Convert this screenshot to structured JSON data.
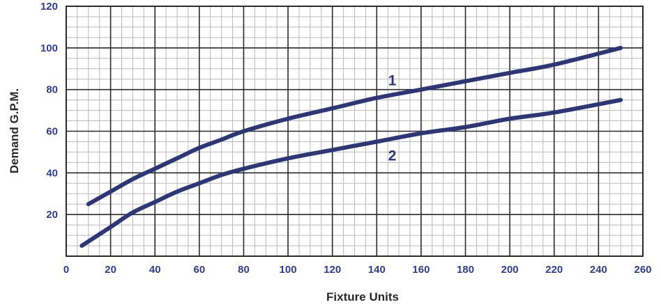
{
  "chart_data": {
    "type": "line",
    "xlabel": "Fixture Units",
    "ylabel": "Demand G.P.M.",
    "xlim": [
      0,
      260
    ],
    "ylim": [
      0,
      120
    ],
    "x_ticks": [
      0,
      20,
      40,
      60,
      80,
      100,
      120,
      140,
      160,
      180,
      200,
      220,
      240,
      260
    ],
    "y_ticks": [
      20,
      40,
      60,
      80,
      100,
      120
    ],
    "minor_per_major": 4,
    "grid": true,
    "colors": {
      "line": "#2d3677",
      "tick_label": "#2e3d8f",
      "grid_major": "#2a2a2a",
      "grid_minor": "#b9b9b9"
    },
    "series": [
      {
        "name": "1",
        "x": [
          10,
          20,
          30,
          40,
          50,
          60,
          70,
          80,
          100,
          120,
          140,
          160,
          180,
          200,
          220,
          250
        ],
        "y": [
          25,
          31,
          37,
          42,
          47,
          52,
          56,
          60,
          66,
          71,
          76,
          80,
          84,
          88,
          92,
          100
        ]
      },
      {
        "name": "2",
        "x": [
          7,
          20,
          30,
          40,
          50,
          60,
          70,
          80,
          100,
          120,
          140,
          160,
          180,
          200,
          220,
          250
        ],
        "y": [
          5,
          14,
          21,
          26,
          31,
          35,
          39,
          42,
          47,
          51,
          55,
          59,
          62,
          66,
          69,
          75
        ]
      }
    ],
    "series_label_anchor": [
      {
        "x": 147,
        "y": 82
      },
      {
        "x": 147,
        "y": 46
      }
    ]
  }
}
